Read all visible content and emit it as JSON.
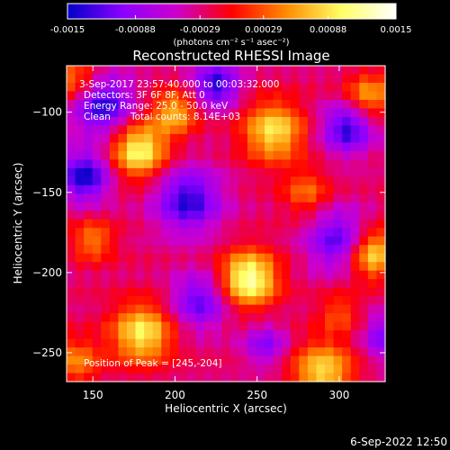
{
  "chart_data": {
    "type": "heatmap",
    "title": "Reconstructed RHESSI Image",
    "xlabel": "Heliocentric X (arcsec)",
    "ylabel": "Heliocentric Y (arcsec)",
    "xlim": [
      134,
      328
    ],
    "ylim": [
      -268,
      -71
    ],
    "x_ticks": [
      150,
      200,
      250,
      300
    ],
    "y_ticks": [
      -250,
      -200,
      -150,
      -100
    ],
    "colorbar": {
      "min": -0.0015,
      "max": 0.0015,
      "tick_values": [
        -0.0015,
        -0.00088,
        -0.00029,
        0.00029,
        0.00088,
        0.0015
      ],
      "tick_labels": [
        "-0.0015",
        "-0.00088",
        "-0.00029",
        "0.00029",
        "0.00088",
        "0.0015"
      ],
      "units": "(photons cm⁻² s⁻¹ asec⁻²)",
      "colors": [
        "#0000c8",
        "#8c00ff",
        "#cc00cc",
        "#ff0000",
        "#ff8c00",
        "#ffff64",
        "#ffffff"
      ]
    },
    "annotations": {
      "time_range": "3-Sep-2017 23:57:40.000 to 00:03:32.000",
      "detectors": "Detectors: 3F 6F 8F, Att 0",
      "energy_range": "Energy Range: 25.0 - 50.0 keV",
      "method": "Clean",
      "total_counts": "Total counts: 8.14E+03",
      "peak": "Position of Peak = [245,-204]"
    },
    "peak_position": [
      245,
      -204
    ],
    "sources": [
      {
        "x": 245,
        "y": -204,
        "amp": 0.0015,
        "sigma": 12
      },
      {
        "x": 178,
        "y": -124,
        "amp": 0.0013,
        "sigma": 12
      },
      {
        "x": 260,
        "y": -112,
        "amp": 0.00115,
        "sigma": 13
      },
      {
        "x": 180,
        "y": -238,
        "amp": 0.0012,
        "sigma": 13
      },
      {
        "x": 320,
        "y": -188,
        "amp": 0.0012,
        "sigma": 11
      },
      {
        "x": 200,
        "y": -100,
        "amp": 0.0009,
        "sigma": 10
      },
      {
        "x": 290,
        "y": -262,
        "amp": 0.0011,
        "sigma": 13
      },
      {
        "x": 140,
        "y": -80,
        "amp": 0.0008,
        "sigma": 11
      },
      {
        "x": 318,
        "y": -90,
        "amp": 0.00085,
        "sigma": 10
      },
      {
        "x": 280,
        "y": -150,
        "amp": 0.0006,
        "sigma": 10
      },
      {
        "x": 140,
        "y": -255,
        "amp": 0.0007,
        "sigma": 10
      },
      {
        "x": 150,
        "y": -180,
        "amp": 0.0007,
        "sigma": 9
      },
      {
        "x": 300,
        "y": -225,
        "amp": 0.0005,
        "sigma": 9
      },
      {
        "x": 155,
        "y": -95,
        "amp": -0.0012,
        "sigma": 13
      },
      {
        "x": 145,
        "y": -140,
        "amp": -0.0012,
        "sigma": 11
      },
      {
        "x": 208,
        "y": -155,
        "amp": -0.0011,
        "sigma": 14
      },
      {
        "x": 215,
        "y": -218,
        "amp": -0.0009,
        "sigma": 12
      },
      {
        "x": 300,
        "y": -180,
        "amp": -0.001,
        "sigma": 13
      },
      {
        "x": 305,
        "y": -110,
        "amp": -0.0011,
        "sigma": 11
      },
      {
        "x": 225,
        "y": -83,
        "amp": -0.0011,
        "sigma": 10
      },
      {
        "x": 330,
        "y": -240,
        "amp": -0.0009,
        "sigma": 10
      },
      {
        "x": 255,
        "y": -245,
        "amp": -0.0007,
        "sigma": 9
      }
    ]
  },
  "footer": {
    "date": "6-Sep-2022 12:50"
  }
}
